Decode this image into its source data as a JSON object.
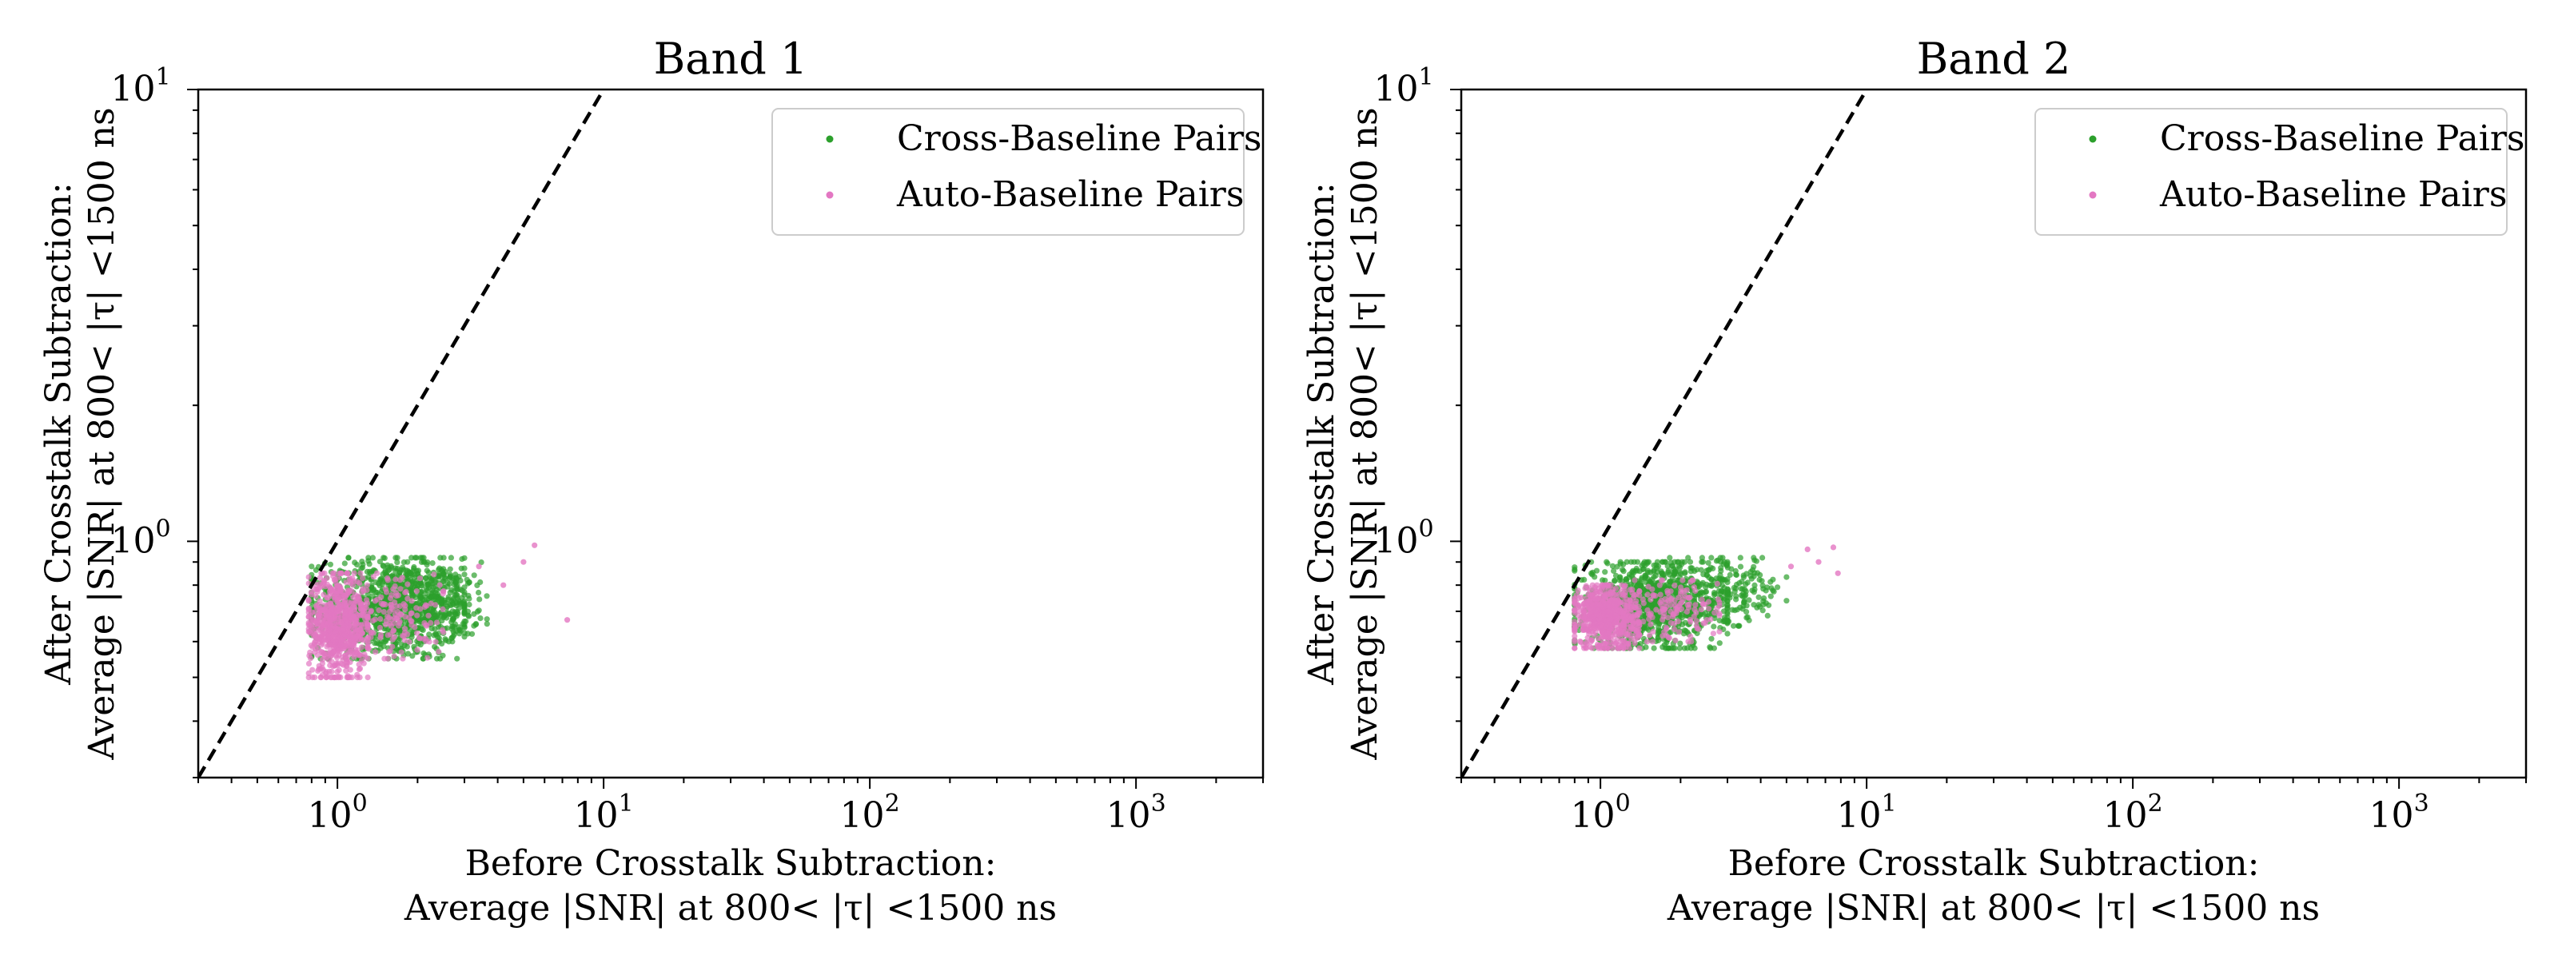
{
  "chart_data": [
    {
      "type": "scatter",
      "title": "Band 1",
      "xlabel": [
        "Before Crosstalk Subtraction:",
        "Average |SNR| at 800< |τ| <1500 ns"
      ],
      "ylabel": [
        "After Crosstalk Subtraction:",
        "Average |SNR| at 800< |τ| <1500 ns"
      ],
      "xscale": "log",
      "yscale": "log",
      "xlim": [
        0.3,
        3000
      ],
      "ylim": [
        0.3,
        10
      ],
      "x_ticks": [
        {
          "value": 1,
          "base": "10",
          "exp": "0"
        },
        {
          "value": 10,
          "base": "10",
          "exp": "1"
        },
        {
          "value": 100,
          "base": "10",
          "exp": "2"
        },
        {
          "value": 1000,
          "base": "10",
          "exp": "3"
        }
      ],
      "y_ticks": [
        {
          "value": 1,
          "base": "10",
          "exp": "0"
        },
        {
          "value": 10,
          "base": "10",
          "exp": "1"
        }
      ],
      "grid": false,
      "legend_position": "top-right",
      "reference_line": {
        "style": "dashed",
        "color": "#000000",
        "equation": "y = x"
      },
      "series": [
        {
          "name": "Cross-Baseline Pairs",
          "color": "#2ca02c",
          "clusters": [
            {
              "x_range": [
                0.8,
                3.0
              ],
              "y_range": [
                0.55,
                0.92
              ],
              "count": 1000
            },
            {
              "x_range": [
                1.5,
                4.0
              ],
              "y_range": [
                0.6,
                0.9
              ],
              "count": 220
            }
          ]
        },
        {
          "name": "Auto-Baseline Pairs",
          "color": "#e377c2",
          "clusters": [
            {
              "x_range": [
                0.78,
                1.3
              ],
              "y_range": [
                0.5,
                0.85
              ],
              "count": 700
            },
            {
              "x_range": [
                1.2,
                2.5
              ],
              "y_range": [
                0.55,
                0.85
              ],
              "count": 150
            }
          ],
          "outliers": [
            {
              "x": 5.5,
              "y": 0.98
            },
            {
              "x": 5.0,
              "y": 0.9
            },
            {
              "x": 7.3,
              "y": 0.67
            },
            {
              "x": 3.4,
              "y": 0.88
            },
            {
              "x": 4.2,
              "y": 0.8
            }
          ]
        }
      ]
    },
    {
      "type": "scatter",
      "title": "Band 2",
      "xlabel": [
        "Before Crosstalk Subtraction:",
        "Average |SNR| at 800< |τ| <1500 ns"
      ],
      "ylabel": [
        "After Crosstalk Subtraction:",
        "Average |SNR| at 800< |τ| <1500 ns"
      ],
      "xscale": "log",
      "yscale": "log",
      "xlim": [
        0.3,
        3000
      ],
      "ylim": [
        0.3,
        10
      ],
      "x_ticks": [
        {
          "value": 1,
          "base": "10",
          "exp": "0"
        },
        {
          "value": 10,
          "base": "10",
          "exp": "1"
        },
        {
          "value": 100,
          "base": "10",
          "exp": "2"
        },
        {
          "value": 1000,
          "base": "10",
          "exp": "3"
        }
      ],
      "y_ticks": [
        {
          "value": 1,
          "base": "10",
          "exp": "0"
        },
        {
          "value": 10,
          "base": "10",
          "exp": "1"
        }
      ],
      "grid": false,
      "legend_position": "top-right",
      "reference_line": {
        "style": "dashed",
        "color": "#000000",
        "equation": "y = x"
      },
      "series": [
        {
          "name": "Cross-Baseline Pairs",
          "color": "#2ca02c",
          "clusters": [
            {
              "x_range": [
                0.8,
                3.0
              ],
              "y_range": [
                0.58,
                0.9
              ],
              "count": 950
            },
            {
              "x_range": [
                1.8,
                5.0
              ],
              "y_range": [
                0.65,
                0.92
              ],
              "count": 200
            }
          ]
        },
        {
          "name": "Auto-Baseline Pairs",
          "color": "#e377c2",
          "clusters": [
            {
              "x_range": [
                0.8,
                1.4
              ],
              "y_range": [
                0.58,
                0.8
              ],
              "count": 650
            },
            {
              "x_range": [
                1.3,
                2.8
              ],
              "y_range": [
                0.6,
                0.82
              ],
              "count": 140
            }
          ],
          "outliers": [
            {
              "x": 7.5,
              "y": 0.97
            },
            {
              "x": 7.8,
              "y": 0.85
            },
            {
              "x": 6.0,
              "y": 0.96
            },
            {
              "x": 5.2,
              "y": 0.88
            },
            {
              "x": 6.6,
              "y": 0.9
            }
          ]
        }
      ]
    }
  ]
}
